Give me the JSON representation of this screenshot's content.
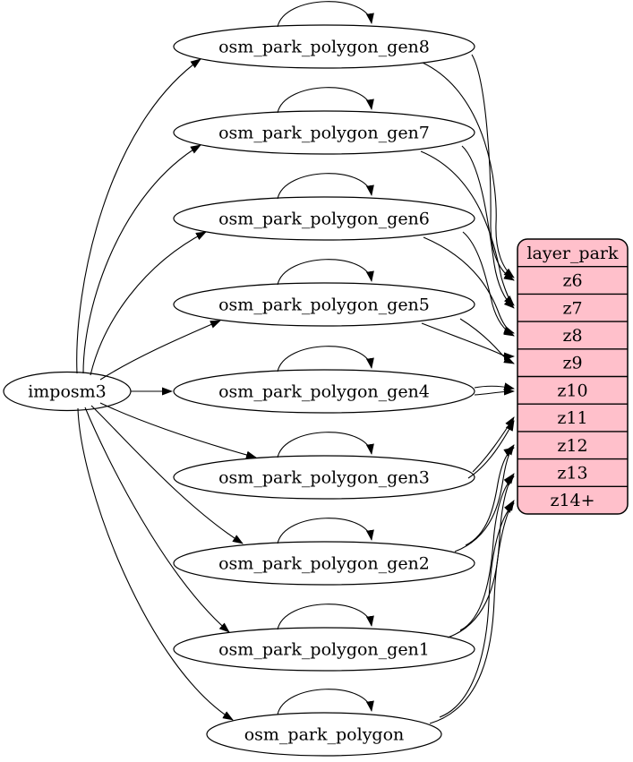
{
  "diagram": {
    "background": "#ffffff",
    "stroke_color": "#000000",
    "node_fill": "#ffffff",
    "source_node": {
      "label": "imposm3"
    },
    "table_nodes": [
      {
        "label": "osm_park_polygon_gen8"
      },
      {
        "label": "osm_park_polygon_gen7"
      },
      {
        "label": "osm_park_polygon_gen6"
      },
      {
        "label": "osm_park_polygon_gen5"
      },
      {
        "label": "osm_park_polygon_gen4"
      },
      {
        "label": "osm_park_polygon_gen3"
      },
      {
        "label": "osm_park_polygon_gen2"
      },
      {
        "label": "osm_park_polygon_gen1"
      },
      {
        "label": "osm_park_polygon"
      }
    ],
    "record_node": {
      "title": "layer_park",
      "rows": [
        "z6",
        "z7",
        "z8",
        "z9",
        "z10",
        "z11",
        "z12",
        "z13",
        "z14+"
      ],
      "fill": "#ffc0cb"
    },
    "edges": {
      "from_source": [
        "osm_park_polygon_gen8",
        "osm_park_polygon_gen7",
        "osm_park_polygon_gen6",
        "osm_park_polygon_gen5",
        "osm_park_polygon_gen4",
        "osm_park_polygon_gen3",
        "osm_park_polygon_gen2",
        "osm_park_polygon_gen1",
        "osm_park_polygon"
      ],
      "self_loops": [
        "osm_park_polygon_gen8",
        "osm_park_polygon_gen7",
        "osm_park_polygon_gen6",
        "osm_park_polygon_gen5",
        "osm_park_polygon_gen4",
        "osm_park_polygon_gen3",
        "osm_park_polygon_gen2",
        "osm_park_polygon_gen1",
        "osm_park_polygon"
      ],
      "to_record_rows": [
        {
          "from": "osm_park_polygon_gen8",
          "to": "z6"
        },
        {
          "from": "osm_park_polygon_gen7",
          "to": "z7"
        },
        {
          "from": "osm_park_polygon_gen6",
          "to": "z8"
        },
        {
          "from": "osm_park_polygon_gen5",
          "to": "z9"
        },
        {
          "from": "osm_park_polygon_gen4",
          "to": "z10"
        },
        {
          "from": "osm_park_polygon_gen3",
          "to": "z11"
        },
        {
          "from": "osm_park_polygon_gen2",
          "to": "z12"
        },
        {
          "from": "osm_park_polygon_gen1",
          "to": "z13"
        },
        {
          "from": "osm_park_polygon",
          "to": "z14+"
        }
      ]
    }
  }
}
